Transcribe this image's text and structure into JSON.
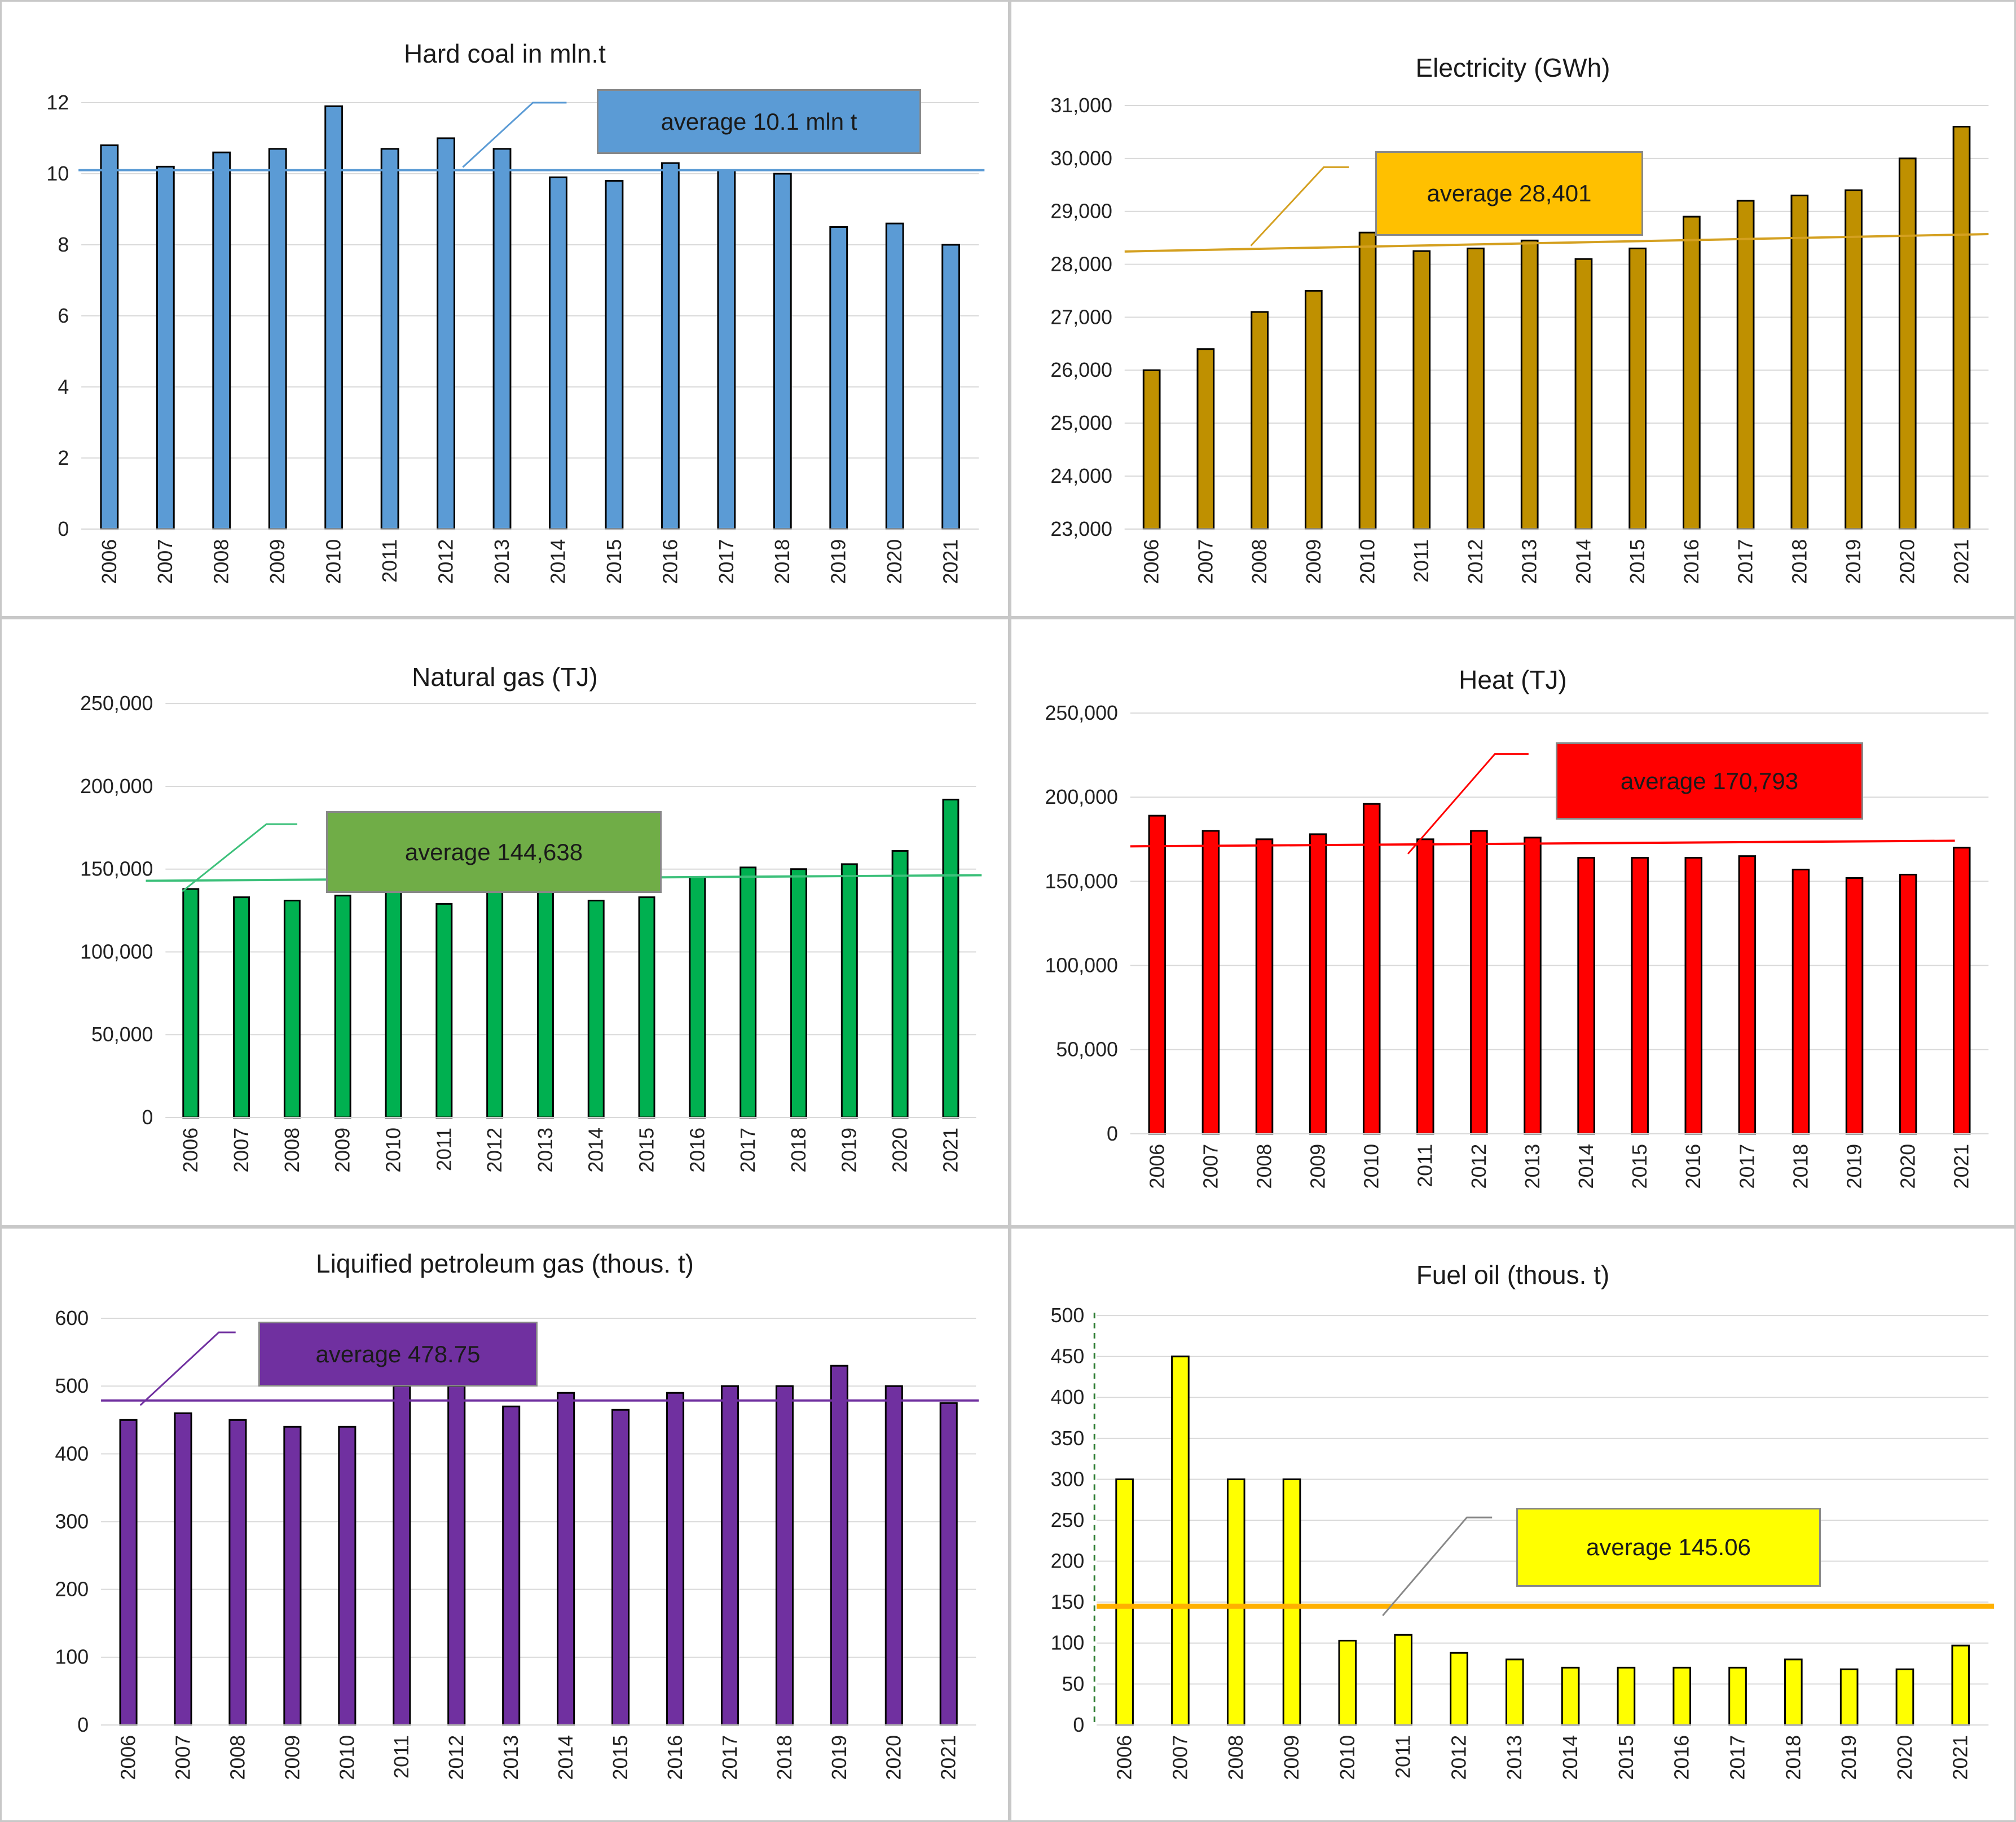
{
  "chart_data": [
    {
      "id": "hard-coal",
      "type": "bar",
      "title": "Hard coal in mln.t",
      "categories": [
        "2006",
        "2007",
        "2008",
        "2009",
        "2010",
        "2011",
        "2012",
        "2013",
        "2014",
        "2015",
        "2016",
        "2017",
        "2018",
        "2019",
        "2020",
        "2021"
      ],
      "values": [
        10.8,
        10.2,
        10.6,
        10.7,
        11.9,
        10.7,
        11.0,
        10.7,
        9.9,
        9.8,
        10.3,
        10.1,
        10.0,
        8.5,
        8.6,
        8.0
      ],
      "ylim": [
        0,
        12
      ],
      "yticks": [
        0,
        2,
        4,
        6,
        8,
        10,
        12
      ],
      "ytick_labels": [
        "0",
        "2",
        "4",
        "6",
        "8",
        "10",
        "12"
      ],
      "bar_color": "#5b9bd5",
      "average": {
        "label": "average 10.1 mln t",
        "value": 10.1,
        "line_color": "#5b9bd5",
        "box_color": "#5b9bd5"
      }
    },
    {
      "id": "electricity",
      "type": "bar",
      "title": "Electricity (GWh)",
      "categories": [
        "2006",
        "2007",
        "2008",
        "2009",
        "2010",
        "2011",
        "2012",
        "2013",
        "2014",
        "2015",
        "2016",
        "2017",
        "2018",
        "2019",
        "2020",
        "2021"
      ],
      "values": [
        26000,
        26400,
        27100,
        27500,
        28600,
        28250,
        28300,
        28450,
        28100,
        28300,
        28900,
        29200,
        29300,
        29400,
        30000,
        30600
      ],
      "ylim": [
        23000,
        31000
      ],
      "yticks": [
        23000,
        24000,
        25000,
        26000,
        27000,
        28000,
        29000,
        30000,
        31000
      ],
      "ytick_labels": [
        "23,000",
        "24,000",
        "25,000",
        "26,000",
        "27,000",
        "28,000",
        "29,000",
        "30,000",
        "31,000"
      ],
      "bar_color": "#bf9000",
      "average": {
        "label": "average 28,401",
        "value": 28401,
        "line_color": "#d4a020",
        "box_color": "#ffc000"
      }
    },
    {
      "id": "natural-gas",
      "type": "bar",
      "title": "Natural gas (TJ)",
      "categories": [
        "2006",
        "2007",
        "2008",
        "2009",
        "2010",
        "2011",
        "2012",
        "2013",
        "2014",
        "2015",
        "2016",
        "2017",
        "2018",
        "2019",
        "2020",
        "2021"
      ],
      "values": [
        138000,
        133000,
        131000,
        134000,
        140000,
        129000,
        141000,
        140000,
        131000,
        133000,
        145000,
        151000,
        150000,
        153000,
        161000,
        192000
      ],
      "ylim": [
        0,
        250000
      ],
      "yticks": [
        0,
        50000,
        100000,
        150000,
        200000,
        250000
      ],
      "ytick_labels": [
        "0",
        "50,000",
        "100,000",
        "150,000",
        "200,000",
        "250,000"
      ],
      "bar_color": "#00b050",
      "average": {
        "label": "average 144,638",
        "value": 144638,
        "line_color": "#3cc07a",
        "box_color": "#70ad47"
      }
    },
    {
      "id": "heat",
      "type": "bar",
      "title": "Heat (TJ)",
      "categories": [
        "2006",
        "2007",
        "2008",
        "2009",
        "2010",
        "2011",
        "2012",
        "2013",
        "2014",
        "2015",
        "2016",
        "2017",
        "2018",
        "2019",
        "2020",
        "2021"
      ],
      "values": [
        189000,
        180000,
        175000,
        178000,
        196000,
        175000,
        180000,
        176000,
        164000,
        164000,
        164000,
        165000,
        157000,
        152000,
        154000,
        170000
      ],
      "ylim": [
        0,
        250000
      ],
      "yticks": [
        0,
        50000,
        100000,
        150000,
        200000,
        250000
      ],
      "ytick_labels": [
        "0",
        "50,000",
        "100,000",
        "150,000",
        "200,000",
        "250,000"
      ],
      "bar_color": "#ff0000",
      "average": {
        "label": "average 170,793",
        "value": 170793,
        "line_color": "#ff0000",
        "box_color": "#ff0000"
      }
    },
    {
      "id": "lpg",
      "type": "bar",
      "title": "Liquified petroleum gas (thous. t)",
      "categories": [
        "2006",
        "2007",
        "2008",
        "2009",
        "2010",
        "2011",
        "2012",
        "2013",
        "2014",
        "2015",
        "2016",
        "2017",
        "2018",
        "2019",
        "2020",
        "2021"
      ],
      "values": [
        450,
        460,
        450,
        440,
        440,
        500,
        500,
        470,
        490,
        465,
        490,
        500,
        500,
        530,
        500,
        475
      ],
      "ylim": [
        0,
        600
      ],
      "yticks": [
        0,
        100,
        200,
        300,
        400,
        500,
        600
      ],
      "ytick_labels": [
        "0",
        "100",
        "200",
        "300",
        "400",
        "500",
        "600"
      ],
      "bar_color": "#7030a0",
      "average": {
        "label": "average 478.75",
        "value": 478.75,
        "line_color": "#7030a0",
        "box_color": "#7030a0"
      }
    },
    {
      "id": "fuel-oil",
      "type": "bar",
      "title": "Fuel oil  (thous. t)",
      "categories": [
        "2006",
        "2007",
        "2008",
        "2009",
        "2010",
        "2011",
        "2012",
        "2013",
        "2014",
        "2015",
        "2016",
        "2017",
        "2018",
        "2019",
        "2020",
        "2021"
      ],
      "values": [
        300,
        450,
        300,
        300,
        103,
        110,
        88,
        80,
        70,
        70,
        70,
        70,
        80,
        68,
        68,
        97
      ],
      "ylim": [
        0,
        500
      ],
      "yticks": [
        0,
        50,
        100,
        150,
        200,
        250,
        300,
        350,
        400,
        450,
        500
      ],
      "ytick_labels": [
        "0",
        "50",
        "100",
        "150",
        "200",
        "250",
        "300",
        "350",
        "400",
        "450",
        "500"
      ],
      "bar_color": "#ffff00",
      "average": {
        "label": "average 145.06",
        "value": 145.06,
        "line_color": "#ffb000",
        "box_color": "#ffff00"
      }
    }
  ]
}
